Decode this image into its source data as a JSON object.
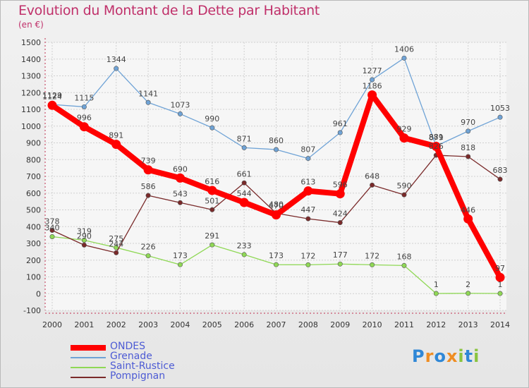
{
  "chart_data": {
    "type": "line",
    "title": "Evolution du Montant de la Dette par Habitant",
    "subtitle": "(en €)",
    "x": [
      "2000",
      "2001",
      "2002",
      "2003",
      "2004",
      "2005",
      "2006",
      "2007",
      "2008",
      "2009",
      "2010",
      "2011",
      "2012",
      "2013",
      "2014"
    ],
    "ylim": [
      -100,
      1500
    ],
    "yticks": [
      -100,
      0,
      100,
      200,
      300,
      400,
      500,
      600,
      700,
      800,
      900,
      1000,
      1100,
      1200,
      1300,
      1400,
      1500
    ],
    "grid": true,
    "legend_position": "bottom-left",
    "series": [
      {
        "name": "ONDES",
        "color": "#ff0000",
        "emphasis": true,
        "values": [
          1124,
          996,
          891,
          739,
          690,
          616,
          544,
          470,
          613,
          596,
          1186,
          929,
          879,
          446,
          97
        ]
      },
      {
        "name": "Grenade",
        "color": "#6fa3d6",
        "values": [
          1129,
          1115,
          1344,
          1141,
          1073,
          990,
          871,
          860,
          807,
          961,
          1277,
          1406,
          881,
          970,
          1053
        ]
      },
      {
        "name": "Saint-Rustice",
        "color": "#8fd855",
        "values": [
          340,
          319,
          275,
          226,
          173,
          291,
          233,
          173,
          172,
          177,
          172,
          168,
          1,
          2,
          1
        ]
      },
      {
        "name": "Pompignan",
        "color": "#7a2a2a",
        "values": [
          378,
          290,
          244,
          586,
          543,
          501,
          661,
          480,
          447,
          424,
          648,
          590,
          826,
          818,
          683
        ]
      }
    ]
  },
  "logo": {
    "text": "Proxiti",
    "letters": [
      "P",
      "r",
      "o",
      "x",
      "i",
      "t",
      "i"
    ],
    "colors": [
      "#2f87d6",
      "#ef8d22",
      "#2f87d6",
      "#ef8d22",
      "#8ac43f",
      "#2f87d6",
      "#8ac43f"
    ]
  }
}
